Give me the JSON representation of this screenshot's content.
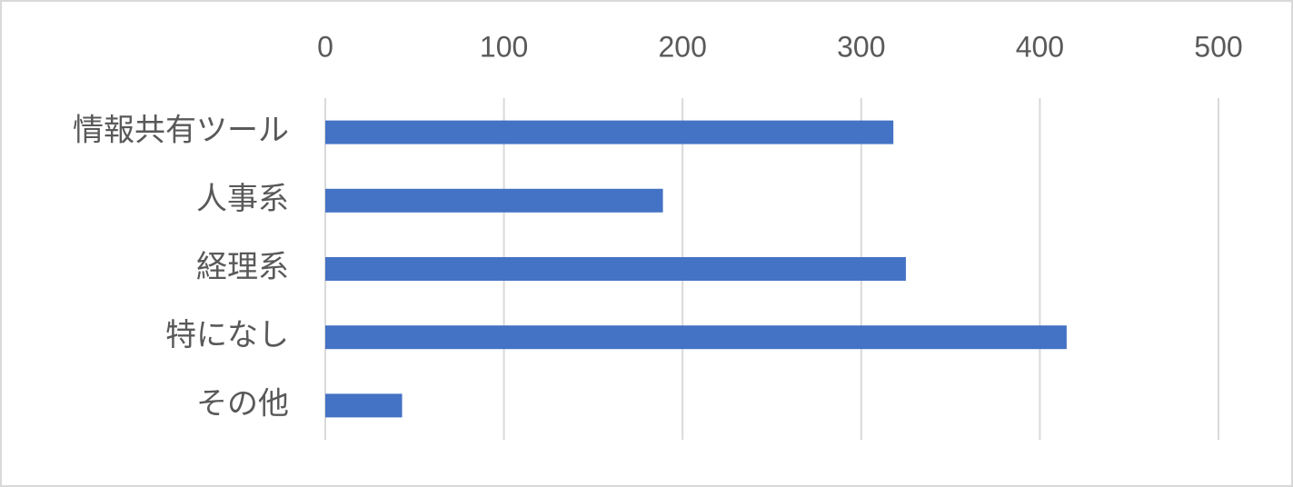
{
  "chart_data": {
    "type": "bar",
    "orientation": "horizontal",
    "categories": [
      "情報共有ツール",
      "人事系",
      "経理系",
      "特になし",
      "その他"
    ],
    "values": [
      318,
      189,
      325,
      415,
      43
    ],
    "color": "#4472c4",
    "xlim": [
      0,
      500
    ],
    "xticks": [
      0,
      100,
      200,
      300,
      400,
      500
    ],
    "grid": true
  }
}
